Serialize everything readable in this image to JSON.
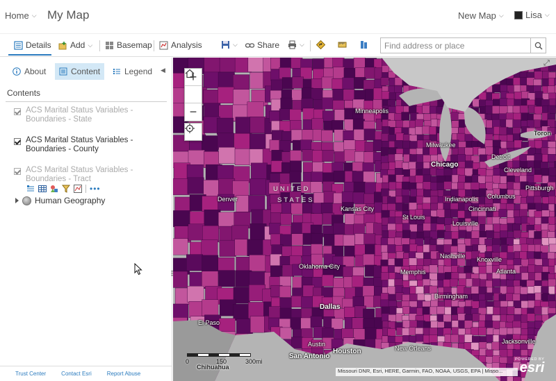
{
  "header": {
    "home_label": "Home",
    "map_title": "My Map",
    "new_map_label": "New Map",
    "user_name": "Lisa"
  },
  "toolbar": {
    "details_label": "Details",
    "add_label": "Add",
    "basemap_label": "Basemap",
    "analysis_label": "Analysis",
    "share_label": "Share",
    "search_placeholder": "Find address or place"
  },
  "panel": {
    "tabs": [
      {
        "label": "About"
      },
      {
        "label": "Content"
      },
      {
        "label": "Legend"
      }
    ],
    "contents_header": "Contents",
    "layers": [
      {
        "name": "ACS Marital Status Variables - Boundaries - State",
        "visible": "dim"
      },
      {
        "name": "ACS Marital Status Variables - Boundaries - County",
        "visible": "on"
      },
      {
        "name": "ACS Marital Status Variables - Boundaries - Tract",
        "visible": "dim"
      }
    ],
    "group_layer": "Human Geography",
    "footer_links": [
      "Trust Center",
      "Contact Esri",
      "Report Abuse"
    ]
  },
  "map": {
    "country_label_1": "UNITED",
    "country_label_2": "STATES",
    "cities": [
      {
        "name": "Minneapolis"
      },
      {
        "name": "Milwaukee"
      },
      {
        "name": "Chicago"
      },
      {
        "name": "Detroit"
      },
      {
        "name": "Cleveland"
      },
      {
        "name": "Pittsburgh"
      },
      {
        "name": "Columbus"
      },
      {
        "name": "Indianapolis"
      },
      {
        "name": "Cincinnati"
      },
      {
        "name": "Louisville"
      },
      {
        "name": "Denver"
      },
      {
        "name": "Kansas City"
      },
      {
        "name": "St Louis"
      },
      {
        "name": "Oklahoma City"
      },
      {
        "name": "Nashville"
      },
      {
        "name": "Knoxville"
      },
      {
        "name": "Memphis"
      },
      {
        "name": "Atlanta"
      },
      {
        "name": "Birmingham"
      },
      {
        "name": "Dallas"
      },
      {
        "name": "El Paso"
      },
      {
        "name": "Austin"
      },
      {
        "name": "San Antonio"
      },
      {
        "name": "Houston"
      },
      {
        "name": "New Orleans"
      },
      {
        "name": "Jacksonville"
      },
      {
        "name": "Chihuahua"
      },
      {
        "name": "Toron"
      }
    ],
    "scale_labels": [
      "0",
      "150",
      "300mi"
    ],
    "attribution": "Missouri DNR, Esri, HERE, Garmin, FAO, NOAA, USGS, EPA | Misso...",
    "powered_by": "POWERED BY",
    "esri_logo": "esri",
    "colors": {
      "water": "#b0b0b0",
      "dark_purple": "#5a0a5c",
      "mid_magenta": "#a6217e",
      "light_pink": "#e89ac3",
      "accent_blue": "#2b7bbe"
    }
  }
}
